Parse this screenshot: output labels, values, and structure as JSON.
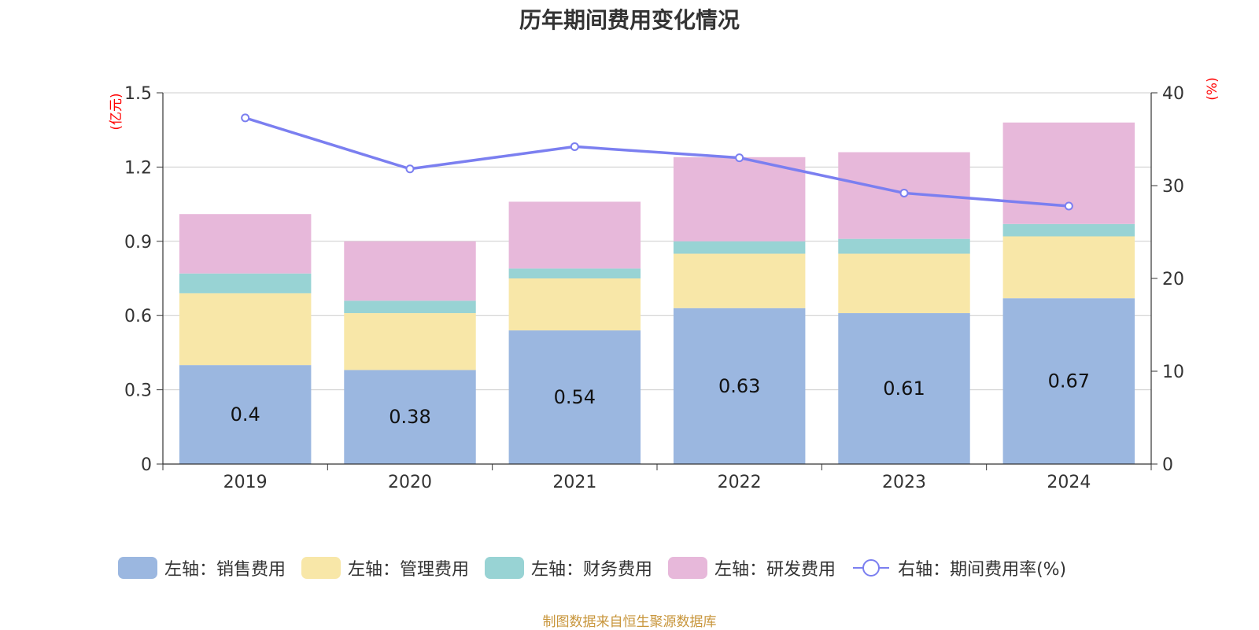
{
  "chart_data": {
    "type": "bar",
    "stacked": true,
    "title": "历年期间费用变化情况",
    "categories": [
      "2019",
      "2020",
      "2021",
      "2022",
      "2023",
      "2024"
    ],
    "left_axis": {
      "unit_label": "(亿元)",
      "ylim": [
        0,
        1.5
      ],
      "ticks": [
        "0",
        "0.3",
        "0.6",
        "0.9",
        "1.2",
        "1.5"
      ]
    },
    "right_axis": {
      "unit_label": "(%)",
      "ylim": [
        0,
        40
      ],
      "ticks": [
        "0",
        "10",
        "20",
        "30",
        "40"
      ]
    },
    "series": [
      {
        "name": "左轴：销售费用",
        "axis": "left",
        "color": "#9bb7e0",
        "values": [
          0.4,
          0.38,
          0.54,
          0.63,
          0.61,
          0.67
        ],
        "labels": [
          "0.4",
          "0.38",
          "0.54",
          "0.63",
          "0.61",
          "0.67"
        ]
      },
      {
        "name": "左轴：管理费用",
        "axis": "left",
        "color": "#f8e7a8",
        "values": [
          0.29,
          0.23,
          0.21,
          0.22,
          0.24,
          0.25
        ]
      },
      {
        "name": "左轴：财务费用",
        "axis": "left",
        "color": "#98d3d4",
        "values": [
          0.08,
          0.05,
          0.04,
          0.05,
          0.06,
          0.05
        ]
      },
      {
        "name": "左轴：研发费用",
        "axis": "left",
        "color": "#e7b8da",
        "values": [
          0.24,
          0.24,
          0.27,
          0.34,
          0.35,
          0.41
        ]
      },
      {
        "name": "右轴：期间费用率(%)",
        "axis": "right",
        "type": "line",
        "color": "#7b7ff0",
        "values": [
          37.3,
          31.8,
          34.2,
          33.0,
          29.2,
          27.8
        ]
      }
    ],
    "grid": true,
    "legend_position": "bottom"
  },
  "source_note": "制图数据来自恒生聚源数据库"
}
